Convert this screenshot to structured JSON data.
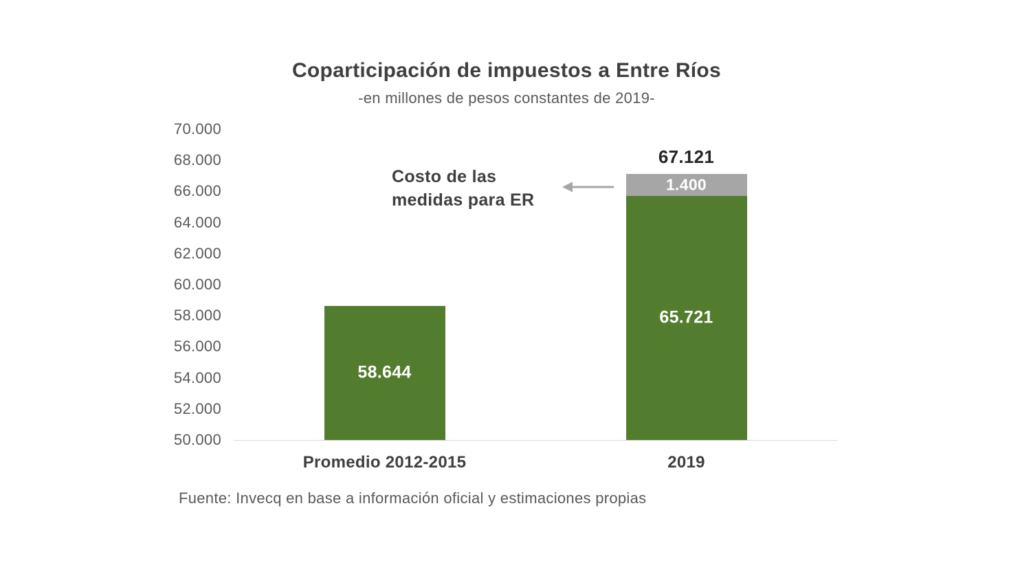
{
  "page": {
    "background": "#ffffff"
  },
  "chart": {
    "title": "Coparticipación de impuestos a Entre Ríos",
    "subtitle": "-en millones de pesos constantes de 2019-",
    "source": "Fuente: Invecq en base a información oficial y estimaciones propias",
    "annotation": {
      "line1": "Costo de las",
      "line2": "medidas para ER"
    }
  },
  "chart_data": {
    "type": "bar",
    "stacked": true,
    "title": "Coparticipación de impuestos a Entre Ríos",
    "subtitle": "-en millones de pesos constantes de 2019-",
    "categories": [
      "Promedio 2012-2015",
      "2019"
    ],
    "series": [
      {
        "key": "coparticipacion",
        "name": "Coparticipación de impuestos",
        "color": "#527c2e",
        "values": [
          58644,
          65721
        ],
        "labels": [
          "58.644",
          "65.721"
        ],
        "label_color": "#ffffff",
        "label_size": 25
      },
      {
        "key": "costo-medidas-er",
        "name": "Costo de las medidas para ER",
        "color": "#a6a6a6",
        "values": [
          0,
          1400
        ],
        "labels": [
          "",
          "1.400"
        ],
        "label_color": "#ffffff",
        "label_size": 23
      }
    ],
    "totals": [
      58644,
      67121
    ],
    "total_labels": [
      "",
      "67.121"
    ],
    "ylim": [
      50000,
      70000
    ],
    "y_tick_step": 2000,
    "y_tick_labels": [
      "50.000",
      "52.000",
      "54.000",
      "56.000",
      "58.000",
      "60.000",
      "62.000",
      "64.000",
      "66.000",
      "68.000",
      "70.000"
    ],
    "grid": false,
    "legend": "none",
    "annotation_text": "Costo de las medidas para ER",
    "annotation_arrow_color": "#a6a6a6",
    "x_axis_line_color": "#d9d9d9",
    "tick_label_color": "#595959"
  }
}
